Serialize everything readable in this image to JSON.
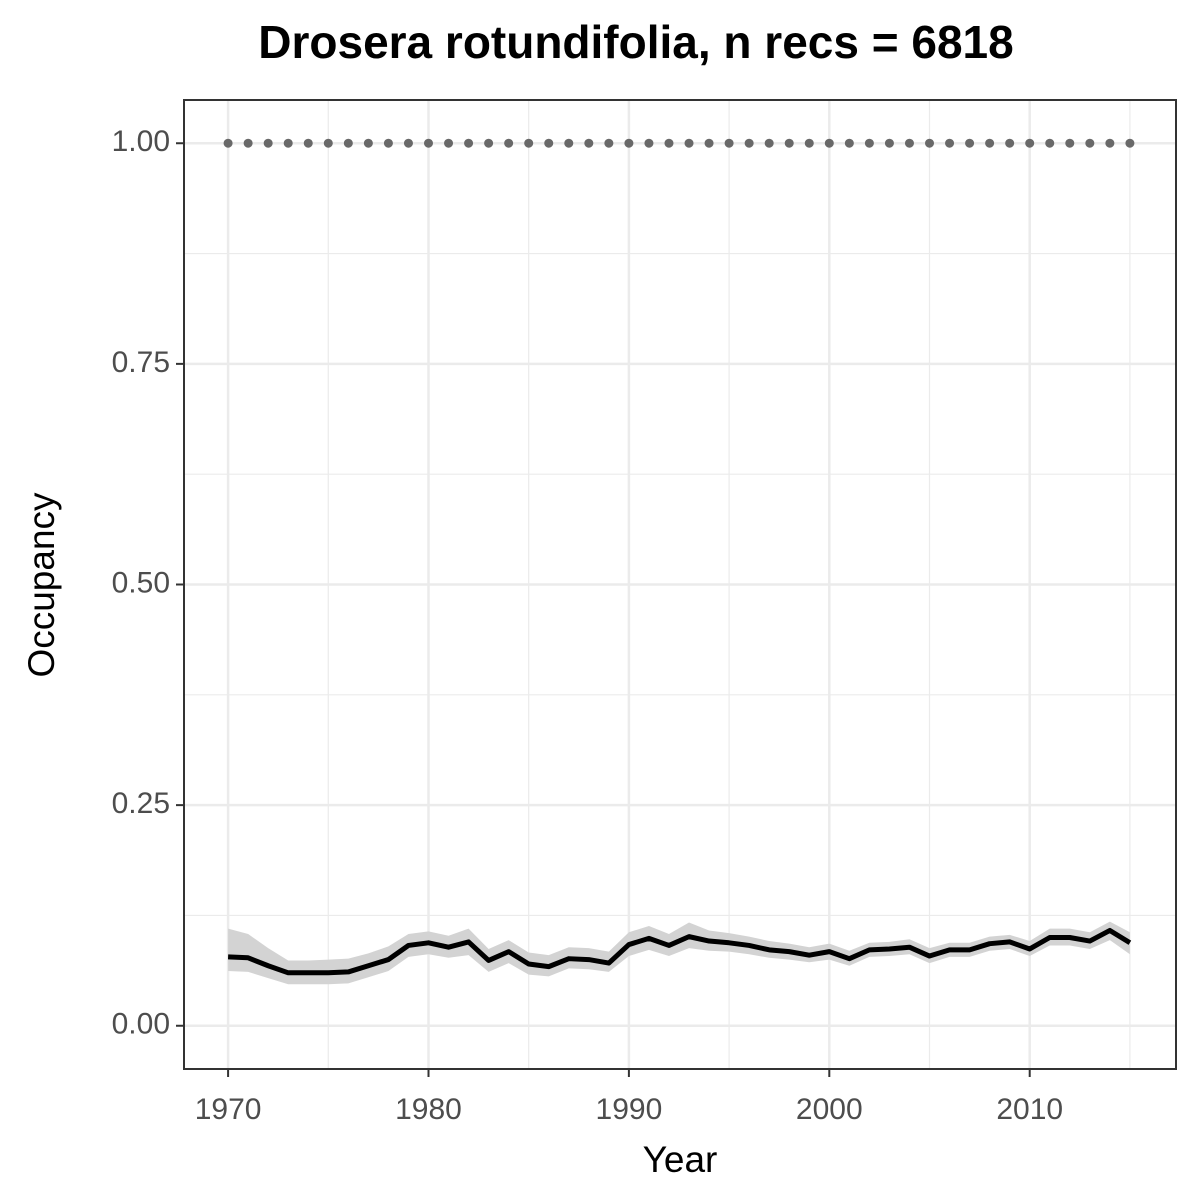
{
  "chart_data": {
    "type": "line",
    "title": "Drosera rotundifolia, n recs = 6818",
    "xlabel": "Year",
    "ylabel": "Occupancy",
    "x": [
      1970,
      1971,
      1972,
      1973,
      1974,
      1975,
      1976,
      1977,
      1978,
      1979,
      1980,
      1981,
      1982,
      1983,
      1984,
      1985,
      1986,
      1987,
      1988,
      1989,
      1990,
      1991,
      1992,
      1993,
      1994,
      1995,
      1996,
      1997,
      1998,
      1999,
      2000,
      2001,
      2002,
      2003,
      2004,
      2005,
      2006,
      2007,
      2008,
      2009,
      2010,
      2011,
      2012,
      2013,
      2014,
      2015
    ],
    "series": [
      {
        "color": "#000000",
        "band_color": "#d3d3d3",
        "values": [
          0.078,
          0.077,
          0.068,
          0.06,
          0.06,
          0.06,
          0.061,
          0.068,
          0.075,
          0.091,
          0.094,
          0.089,
          0.095,
          0.074,
          0.084,
          0.07,
          0.067,
          0.076,
          0.075,
          0.071,
          0.092,
          0.099,
          0.091,
          0.101,
          0.096,
          0.094,
          0.091,
          0.086,
          0.084,
          0.08,
          0.084,
          0.076,
          0.086,
          0.087,
          0.089,
          0.079,
          0.086,
          0.086,
          0.093,
          0.095,
          0.087,
          0.1,
          0.1,
          0.096,
          0.108,
          0.094
        ],
        "lower": [
          0.062,
          0.061,
          0.054,
          0.047,
          0.047,
          0.047,
          0.048,
          0.055,
          0.062,
          0.078,
          0.081,
          0.077,
          0.08,
          0.061,
          0.071,
          0.058,
          0.056,
          0.065,
          0.064,
          0.061,
          0.079,
          0.086,
          0.079,
          0.088,
          0.085,
          0.084,
          0.081,
          0.077,
          0.075,
          0.072,
          0.075,
          0.068,
          0.078,
          0.079,
          0.081,
          0.071,
          0.078,
          0.078,
          0.085,
          0.087,
          0.079,
          0.091,
          0.091,
          0.087,
          0.097,
          0.081
        ],
        "upper": [
          0.11,
          0.104,
          0.088,
          0.074,
          0.074,
          0.075,
          0.076,
          0.082,
          0.09,
          0.104,
          0.107,
          0.102,
          0.11,
          0.087,
          0.097,
          0.083,
          0.08,
          0.089,
          0.088,
          0.084,
          0.106,
          0.113,
          0.104,
          0.117,
          0.108,
          0.105,
          0.101,
          0.096,
          0.093,
          0.089,
          0.093,
          0.085,
          0.094,
          0.095,
          0.098,
          0.088,
          0.094,
          0.094,
          0.101,
          0.103,
          0.096,
          0.11,
          0.11,
          0.106,
          0.118,
          0.106
        ]
      },
      {
        "color": "#696969",
        "style": "dotted",
        "values": [
          1,
          1,
          1,
          1,
          1,
          1,
          1,
          1,
          1,
          1,
          1,
          1,
          1,
          1,
          1,
          1,
          1,
          1,
          1,
          1,
          1,
          1,
          1,
          1,
          1,
          1,
          1,
          1,
          1,
          1,
          1,
          1,
          1,
          1,
          1,
          1,
          1,
          1,
          1,
          1,
          1,
          1,
          1,
          1,
          1,
          1
        ]
      }
    ],
    "xlim": [
      1967.8,
      2017.3
    ],
    "xticks": [
      1970,
      1980,
      1990,
      2000,
      2010
    ],
    "xminorticks": [
      1975,
      1985,
      1995,
      2005,
      2015
    ],
    "ylim": [
      -0.049,
      1.049
    ],
    "yticks": [
      {
        "value": 0,
        "label": "0.00"
      },
      {
        "value": 0.25,
        "label": "0.25"
      },
      {
        "value": 0.5,
        "label": "0.50"
      },
      {
        "value": 0.75,
        "label": "0.75"
      },
      {
        "value": 1,
        "label": "1.00"
      }
    ],
    "yminorticks": [
      0.125,
      0.375,
      0.625,
      0.875
    ],
    "grid": true
  }
}
